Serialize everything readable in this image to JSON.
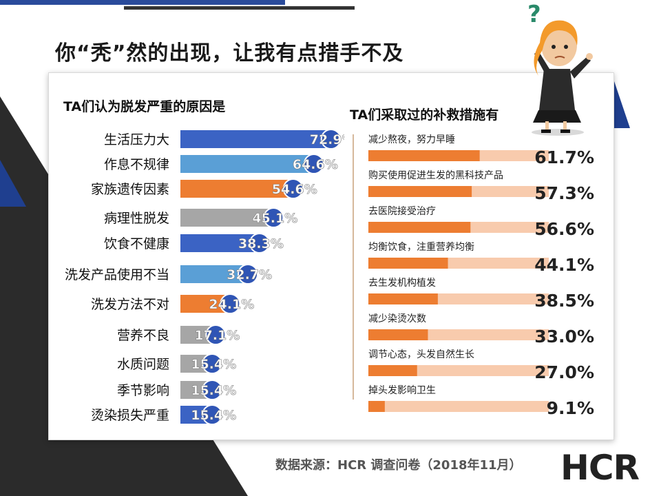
{
  "page": {
    "title": "你“秃”然的出现，让我有点措手不及",
    "source_text": "数据来源：HCR 调查问卷（2018年11月）",
    "brand": "HCR"
  },
  "colors": {
    "blue": "#3b63c4",
    "light_blue": "#5a9fd6",
    "orange": "#ed7d31",
    "gray": "#a6a6a6",
    "orange_bg": "#f8cbad",
    "badge": "#2f55b5",
    "navy": "#1f3f8f",
    "dark": "#2b2b2b"
  },
  "chart_data": [
    {
      "type": "bar",
      "orientation": "horizontal",
      "title": "TA们认为脱发严重的原因是",
      "unit": "%",
      "xlim": [
        0,
        100
      ],
      "categories": [
        "生活压力大",
        "作息不规律",
        "家族遗传因素",
        "病理性脱发",
        "饮食不健康",
        "洗发产品使用不当",
        "洗发方法不对",
        "营养不良",
        "水质问题",
        "季节影响",
        "烫染损失严重"
      ],
      "values": [
        72.9,
        64.6,
        54.6,
        45.1,
        38.3,
        32.7,
        24.1,
        17.1,
        15.4,
        15.4,
        15.4
      ],
      "value_labels": [
        "72.9%",
        "64.6%",
        "54.6%",
        "45.1%",
        "38.3%",
        "32.7%",
        "24.1%",
        "17.1%",
        "15.4%",
        "15.4%",
        "15.4%"
      ],
      "bar_colors": [
        "blue",
        "light_blue",
        "orange",
        "gray",
        "blue",
        "light_blue",
        "orange",
        "gray",
        "gray",
        "gray",
        "blue"
      ]
    },
    {
      "type": "bar",
      "orientation": "horizontal",
      "title": "TA们采取过的补救措施有",
      "unit": "%",
      "xlim": [
        0,
        100
      ],
      "categories": [
        "减少熬夜，努力早睡",
        "购买使用促进生发的黑科技产品",
        "去医院接受治疗",
        "均衡饮食，注重营养均衡",
        "去生发机构植发",
        "减少染烫次数",
        "调节心态，头发自然生长",
        "掉头发影响卫生"
      ],
      "values": [
        61.7,
        57.3,
        56.6,
        44.1,
        38.5,
        33.0,
        27.0,
        9.1
      ],
      "value_labels": [
        "61.7%",
        "57.3%",
        "56.6%",
        "44.1%",
        "38.5%",
        "33.0%",
        "27.0%",
        "9.1%"
      ]
    }
  ]
}
